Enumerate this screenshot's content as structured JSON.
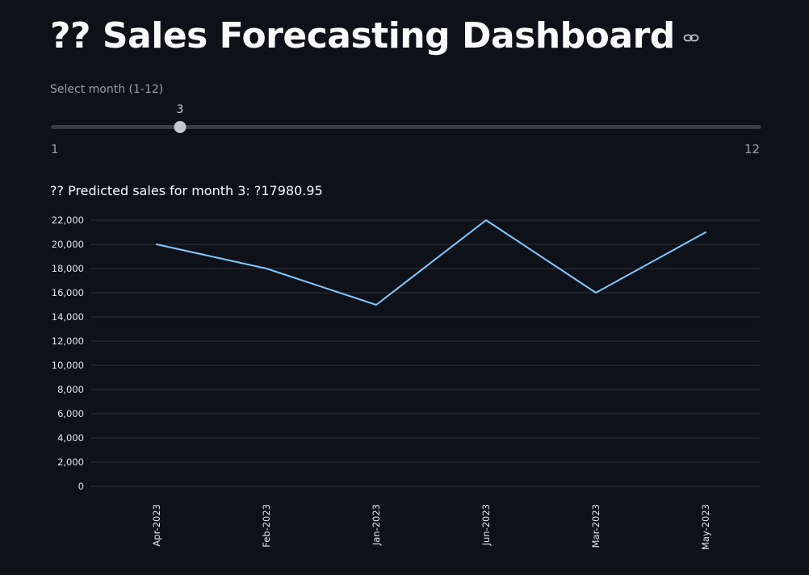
{
  "header": {
    "title": "?? Sales Forecasting Dashboard",
    "link_icon": "link-icon"
  },
  "slider": {
    "label": "Select month (1-12)",
    "value": 3,
    "value_label": "3",
    "min": 1,
    "max": 12,
    "min_label": "1",
    "max_label": "12"
  },
  "prediction": {
    "text": "?? Predicted sales for month 3: ?17980.95"
  },
  "colors": {
    "background": "#0e1117",
    "line": "#83c9ff",
    "grid": "#31333f"
  },
  "chart_data": {
    "type": "line",
    "categories": [
      "Apr-2023",
      "Feb-2023",
      "Jan-2023",
      "Jun-2023",
      "Mar-2023",
      "May-2023"
    ],
    "series": [
      {
        "values": [
          20000,
          18000,
          15000,
          22000,
          16000,
          21000
        ]
      }
    ],
    "title": "",
    "xlabel": "",
    "ylabel": "",
    "ylim": [
      0,
      22000
    ],
    "yticks": [
      0,
      2000,
      4000,
      6000,
      8000,
      10000,
      12000,
      14000,
      16000,
      18000,
      20000,
      22000
    ],
    "ytick_labels": [
      "0",
      "2,000",
      "4,000",
      "6,000",
      "8,000",
      "10,000",
      "12,000",
      "14,000",
      "16,000",
      "18,000",
      "20,000",
      "22,000"
    ],
    "grid": true,
    "legend": "none"
  }
}
